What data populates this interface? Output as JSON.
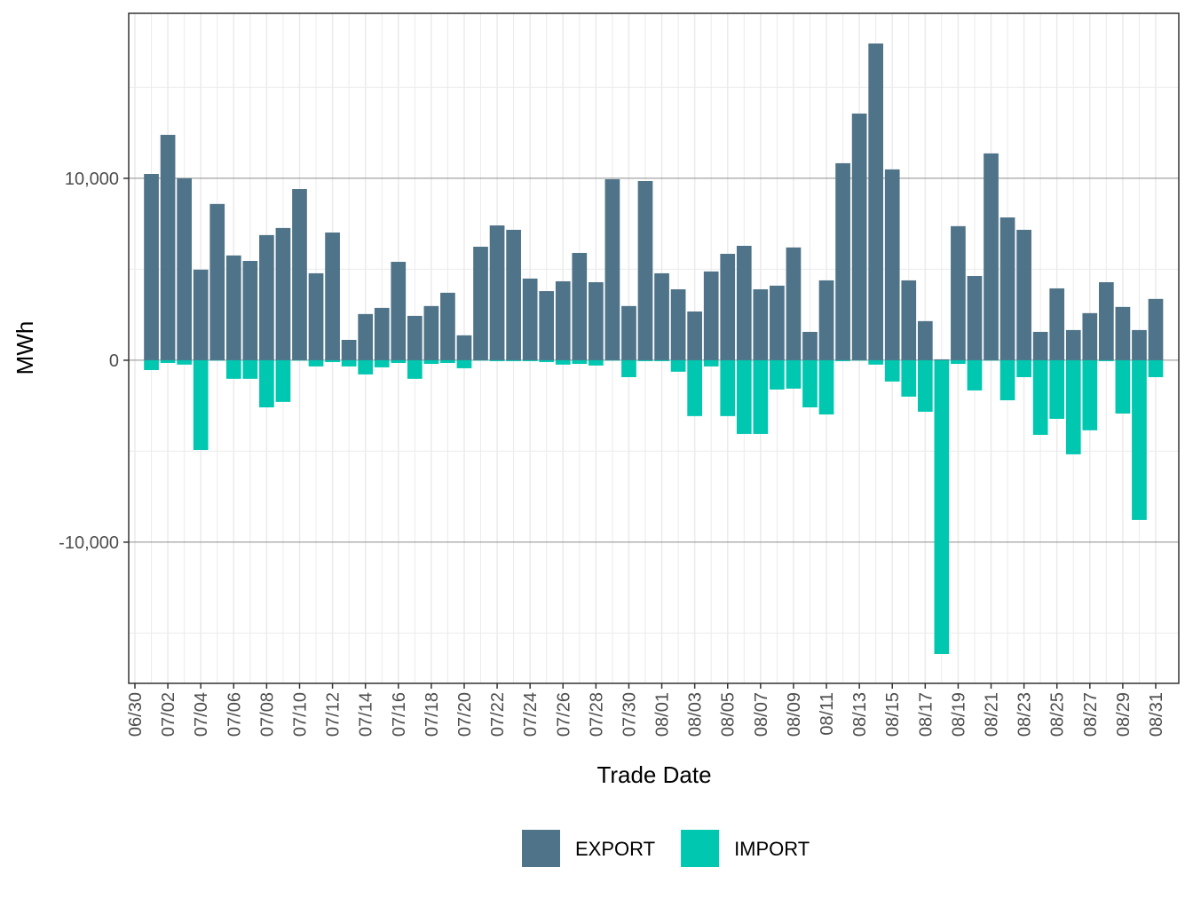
{
  "chart_data": {
    "type": "bar",
    "x_label": "Trade Date",
    "y_label": "MWh",
    "categories": [
      "06/30",
      null,
      "07/02",
      null,
      "07/04",
      null,
      "07/06",
      null,
      "07/08",
      null,
      "07/10",
      null,
      "07/12",
      null,
      "07/14",
      null,
      "07/16",
      null,
      "07/18",
      null,
      "07/20",
      null,
      "07/22",
      null,
      "07/24",
      null,
      "07/26",
      null,
      "07/28",
      null,
      "07/30",
      null,
      "08/01",
      null,
      "08/03",
      null,
      "08/05",
      null,
      "08/07",
      null,
      "08/09",
      null,
      "08/11",
      null,
      "08/13",
      null,
      "08/15",
      null,
      "08/17",
      null,
      "08/19",
      null,
      "08/21",
      null,
      "08/23",
      null,
      "08/25",
      null,
      "08/27",
      null,
      "08/29",
      null,
      "08/31"
    ],
    "series": [
      {
        "name": "EXPORT",
        "color": "#4f7388",
        "values": [
          null,
          10240,
          12390,
          10000,
          4980,
          8590,
          5760,
          5460,
          6880,
          7270,
          9410,
          4780,
          7020,
          1120,
          2540,
          2880,
          5410,
          2440,
          2980,
          3710,
          1370,
          6240,
          7410,
          7170,
          4490,
          3800,
          4340,
          5900,
          4290,
          9950,
          2980,
          9850,
          4780,
          3900,
          2680,
          4880,
          5850,
          6290,
          3900,
          4100,
          6200,
          1560,
          4390,
          10830,
          13560,
          17410,
          10490,
          4390,
          2150,
          50,
          7370,
          4630,
          11370,
          7850,
          7170,
          1560,
          3950,
          1660,
          2590,
          4290,
          2930,
          1660,
          3370
        ]
      },
      {
        "name": "IMPORT",
        "color": "#00c7b0",
        "values": [
          null,
          -540,
          -150,
          -240,
          -4930,
          -20,
          -1020,
          -1020,
          -2590,
          -2290,
          -20,
          -340,
          -100,
          -340,
          -780,
          -390,
          -150,
          -1020,
          -200,
          -150,
          -440,
          -20,
          -50,
          -50,
          -50,
          -100,
          -240,
          -200,
          -290,
          -20,
          -930,
          -50,
          -50,
          -630,
          -3070,
          -340,
          -3070,
          -4050,
          -4050,
          -1610,
          -1560,
          -2590,
          -2980,
          -50,
          -20,
          -240,
          -1170,
          -2000,
          -2830,
          -16150,
          -200,
          -1660,
          -20,
          -2200,
          -930,
          -4100,
          -3220,
          -5170,
          -3850,
          -50,
          -2930,
          -8780,
          -930
        ]
      }
    ],
    "ylim": [
      -17760,
      19070
    ],
    "yticks": [
      {
        "value": -10000,
        "label": "-10,000"
      },
      0,
      {
        "value": 10000,
        "label": "10,000"
      }
    ],
    "grid": true,
    "legend": "bottom"
  }
}
